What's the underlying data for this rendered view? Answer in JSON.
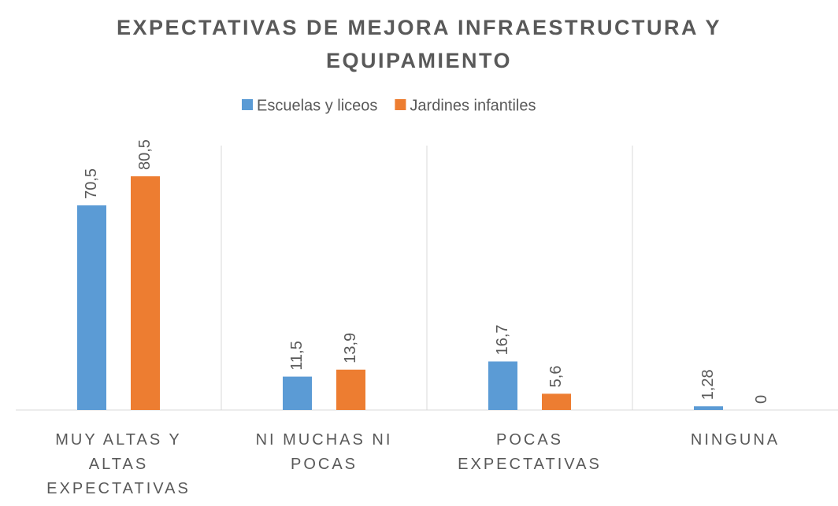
{
  "chart_data": {
    "type": "bar",
    "title": "EXPECTATIVAS DE MEJORA INFRAESTRUCTURA Y EQUIPAMIENTO",
    "categories": [
      "MUY ALTAS Y ALTAS EXPECTATIVAS",
      "NI MUCHAS NI POCAS",
      "POCAS EXPECTATIVAS",
      "NINGUNA"
    ],
    "series": [
      {
        "name": "Escuelas y liceos",
        "color": "#5b9bd5",
        "values": [
          70.5,
          11.5,
          16.7,
          1.28
        ],
        "value_labels": [
          "70,5",
          "11,5",
          "16,7",
          "1,28"
        ]
      },
      {
        "name": "Jardines infantiles",
        "color": "#ed7d31",
        "values": [
          80.5,
          13.9,
          5.6,
          0
        ],
        "value_labels": [
          "80,5",
          "13,9",
          "5,6",
          "0"
        ]
      }
    ],
    "ylim": [
      0,
      90
    ],
    "legend": "top"
  }
}
